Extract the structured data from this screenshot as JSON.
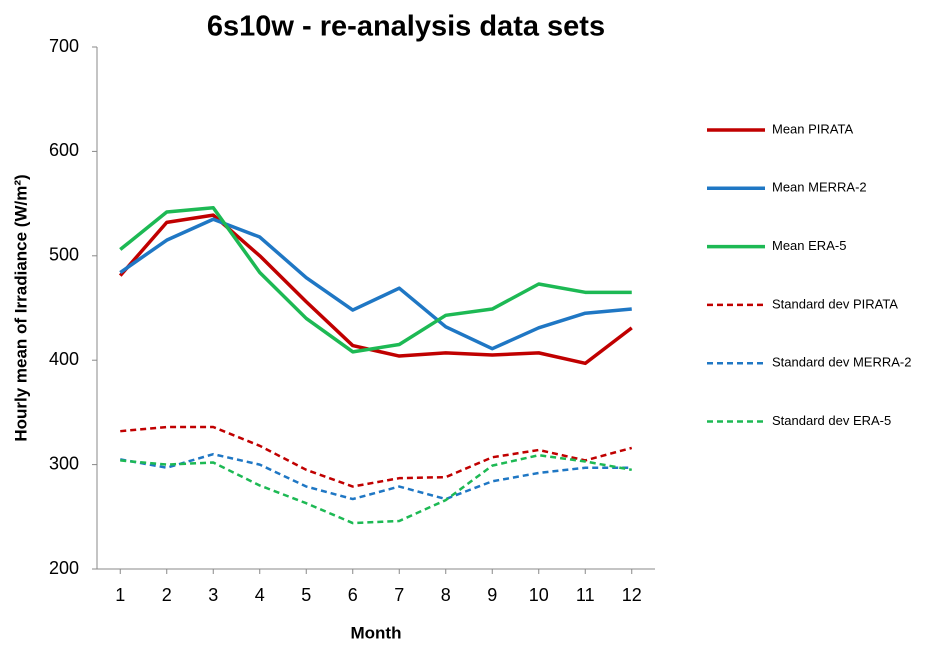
{
  "chart_data": {
    "type": "line",
    "title": "6s10w - re-analysis data sets",
    "x_label": "Month",
    "y_label": "Hourly mean of Irradiance (W/m²)",
    "x": [
      1,
      2,
      3,
      4,
      5,
      6,
      7,
      8,
      9,
      10,
      11,
      12
    ],
    "xlim": [
      0.5,
      12.5
    ],
    "xticks": [
      1,
      2,
      3,
      4,
      5,
      6,
      7,
      8,
      9,
      10,
      11,
      12
    ],
    "ylim": [
      200,
      700
    ],
    "yticks": [
      200,
      300,
      400,
      500,
      600,
      700
    ],
    "grid": false,
    "legend": "right",
    "series": [
      {
        "name": "Mean PIRATA",
        "color": "#c00000",
        "line_style": "solid",
        "values": [
          481,
          532,
          539,
          500,
          456,
          414,
          404,
          407,
          405,
          407,
          397,
          431
        ]
      },
      {
        "name": "Mean MERRA-2",
        "color": "#1f77c4",
        "line_style": "solid",
        "values": [
          484,
          515,
          535,
          518,
          479,
          448,
          469,
          432,
          411,
          431,
          445,
          449
        ]
      },
      {
        "name": "Mean ERA-5",
        "color": "#1db954",
        "line_style": "solid",
        "values": [
          506,
          542,
          546,
          484,
          440,
          408,
          415,
          443,
          449,
          473,
          465,
          465
        ]
      },
      {
        "name": "Standard dev PIRATA",
        "color": "#c00000",
        "line_style": "dashed",
        "values": [
          332,
          336,
          336,
          318,
          295,
          279,
          287,
          288,
          307,
          314,
          304,
          316
        ]
      },
      {
        "name": "Standard dev MERRA-2",
        "color": "#1f77c4",
        "line_style": "dashed",
        "values": [
          305,
          297,
          310,
          300,
          279,
          267,
          279,
          267,
          284,
          292,
          297,
          297
        ]
      },
      {
        "name": "Standard dev ERA-5",
        "color": "#1db954",
        "line_style": "dashed",
        "values": [
          304,
          300,
          302,
          280,
          263,
          244,
          246,
          266,
          299,
          309,
          303,
          295
        ]
      }
    ]
  }
}
